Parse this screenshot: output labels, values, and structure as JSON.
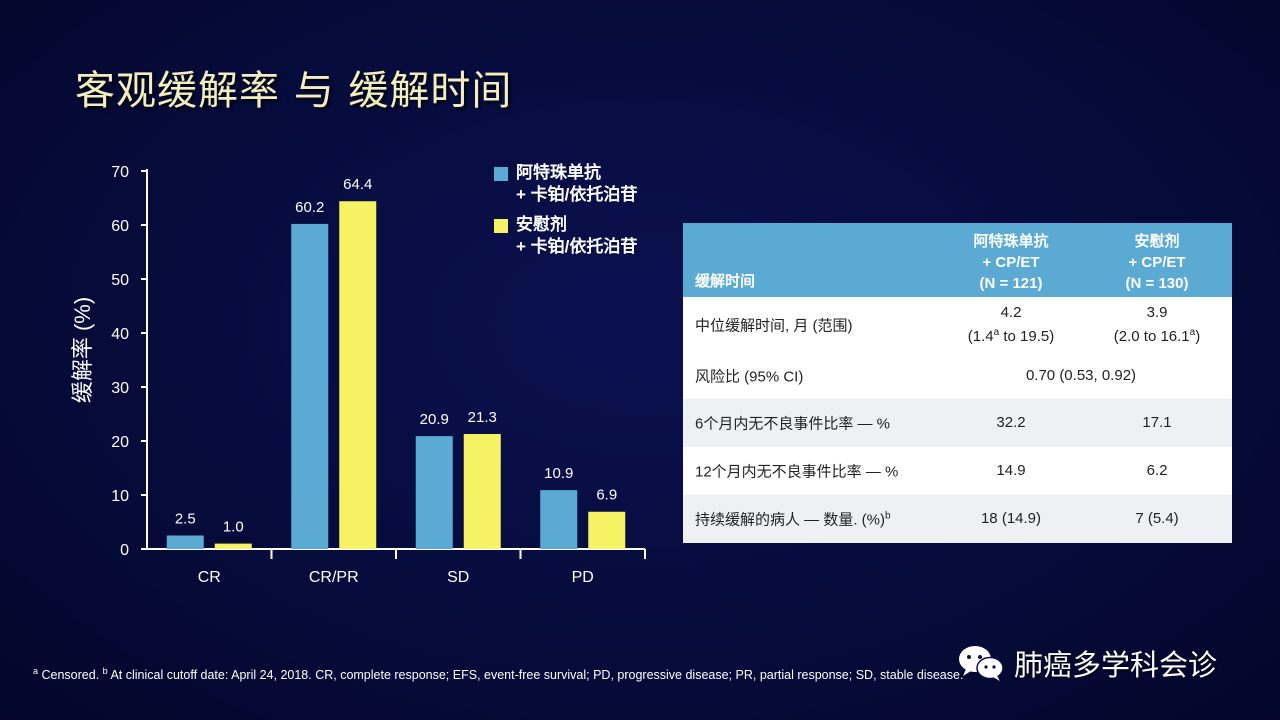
{
  "title": "客观缓解率 与 缓解时间",
  "chart_data": {
    "type": "bar",
    "categories": [
      "CR",
      "CR/PR",
      "SD",
      "PD"
    ],
    "series": [
      {
        "name": "阿特珠单抗 + 卡铂/依托泊苷",
        "values": [
          2.5,
          60.2,
          20.9,
          10.9
        ],
        "labels": [
          "2.5",
          "60.2",
          "20.9",
          "10.9"
        ],
        "color": "#5aaad3"
      },
      {
        "name": "安慰剂 + 卡铂/依托泊苷",
        "values": [
          1.0,
          64.4,
          21.3,
          6.9
        ],
        "labels": [
          "1.0",
          "64.4",
          "21.3",
          "6.9"
        ],
        "color": "#f5f264"
      }
    ],
    "ylabel": "缓解率 (%)",
    "xlabel": "",
    "ylim": [
      0,
      70
    ],
    "yticks": [
      0,
      10,
      20,
      30,
      40,
      50,
      60,
      70
    ],
    "legend_position": "top-right"
  },
  "legend": [
    {
      "line1": "阿特珠单抗",
      "line2": "+ 卡铂/依托泊苷",
      "color": "#5aaad3"
    },
    {
      "line1": "安慰剂",
      "line2": "+ 卡铂/依托泊苷",
      "color": "#f5f264"
    }
  ],
  "table": {
    "header_label": "缓解时间",
    "col1": {
      "line1": "阿特珠单抗",
      "line2": "+ CP/ET",
      "line3": "(N = 121)"
    },
    "col2": {
      "line1": "安慰剂",
      "line2": "+ CP/ET",
      "line3": "(N = 130)"
    },
    "rows": [
      {
        "label": "中位缓解时间, 月 (范围)",
        "v1a": "4.2",
        "v1b_pre": "(1.4",
        "v1b_sup": "a",
        "v1b_post": " to 19.5)",
        "v2a": "3.9",
        "v2b_pre": "(2.0 to 16.1",
        "v2b_sup": "a",
        "v2b_post": ")"
      },
      {
        "label": "风险比 (95% CI)",
        "span": "0.70 (0.53, 0.92)"
      },
      {
        "label": "6个月内无不良事件比率  —  %",
        "v1": "32.2",
        "v2": "17.1"
      },
      {
        "label": "12个月内无不良事件比率  — %",
        "v1": "14.9",
        "v2": "6.2"
      },
      {
        "label_pre": "持续缓解的病人 — 数量. (%)",
        "label_sup": "b",
        "v1": "18 (14.9)",
        "v2": "7 (5.4)"
      }
    ]
  },
  "footnote": {
    "sup_a": "a",
    "text_a": " Censored. ",
    "sup_b": "b",
    "text_b": " At clinical cutoff date: April 24, 2018. CR, complete response; EFS, event-free survival; PD, progressive disease; PR, partial response; SD, stable disease."
  },
  "watermark": "肺癌多学科会诊"
}
